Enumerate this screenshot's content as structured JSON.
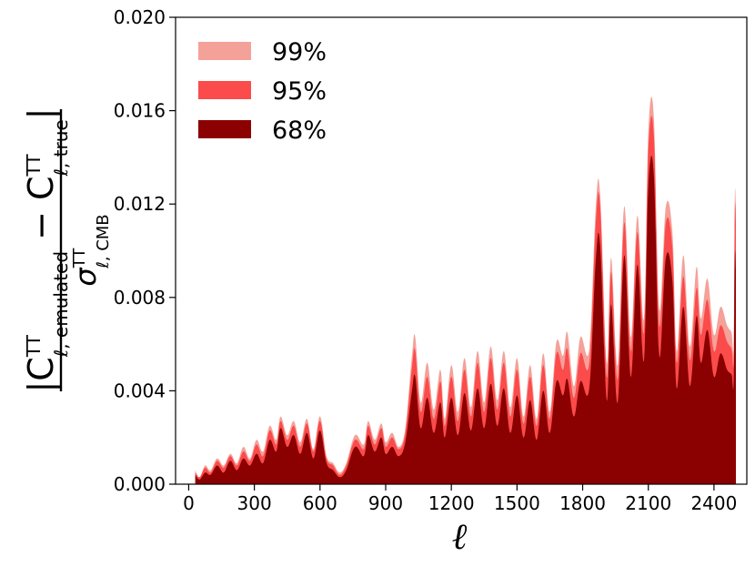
{
  "chart_data": {
    "type": "area",
    "xlabel": "ℓ",
    "ylabel_parts": {
      "numerator_open": "|C",
      "numerator_sup1": "TT",
      "numerator_sub1": "ℓ, emulated",
      "numerator_minus": " − C",
      "numerator_sup2": "TT",
      "numerator_sub2": "ℓ, true",
      "numerator_close": "|",
      "denominator_sigma": "σ",
      "denominator_sup": "TT",
      "denominator_sub": "ℓ, CMB"
    },
    "xlim": [
      -60,
      2550
    ],
    "ylim": [
      0,
      0.02
    ],
    "xticks": [
      0,
      300,
      600,
      900,
      1200,
      1500,
      1800,
      2100,
      2400
    ],
    "xtick_labels": [
      "0",
      "300",
      "600",
      "900",
      "1200",
      "1500",
      "1800",
      "2100",
      "2400"
    ],
    "yticks": [
      0,
      0.004,
      0.008,
      0.012,
      0.016,
      0.02
    ],
    "ytick_labels": [
      "0.000",
      "0.004",
      "0.008",
      "0.012",
      "0.016",
      "0.020"
    ],
    "legend_position": "top-left",
    "series": [
      {
        "name": "99%",
        "color": "#f4a19a",
        "x": [
          30,
          50,
          75,
          100,
          130,
          160,
          190,
          220,
          250,
          280,
          310,
          340,
          370,
          400,
          420,
          450,
          480,
          510,
          540,
          570,
          600,
          630,
          660,
          690,
          720,
          760,
          800,
          820,
          850,
          880,
          900,
          930,
          960,
          990,
          1020,
          1035,
          1060,
          1090,
          1120,
          1150,
          1170,
          1200,
          1230,
          1260,
          1290,
          1320,
          1350,
          1380,
          1410,
          1440,
          1470,
          1500,
          1530,
          1560,
          1590,
          1620,
          1650,
          1680,
          1710,
          1730,
          1760,
          1790,
          1830,
          1860,
          1880,
          1910,
          1930,
          1960,
          1990,
          2020,
          2050,
          2080,
          2100,
          2125,
          2150,
          2180,
          2210,
          2230,
          2260,
          2290,
          2320,
          2340,
          2370,
          2400,
          2430,
          2460,
          2480,
          2490,
          2495,
          2500
        ],
        "y": [
          0.0006,
          0.0003,
          0.0008,
          0.0006,
          0.0011,
          0.0008,
          0.0013,
          0.0009,
          0.0016,
          0.0011,
          0.0019,
          0.0014,
          0.0025,
          0.0019,
          0.0029,
          0.0021,
          0.0027,
          0.0018,
          0.0028,
          0.0015,
          0.0029,
          0.0012,
          0.0009,
          0.0005,
          0.0009,
          0.0021,
          0.0017,
          0.0027,
          0.0019,
          0.0026,
          0.0018,
          0.0022,
          0.0016,
          0.0024,
          0.0055,
          0.0063,
          0.0035,
          0.0052,
          0.0032,
          0.0049,
          0.0028,
          0.0051,
          0.0031,
          0.0054,
          0.0033,
          0.0057,
          0.0035,
          0.0059,
          0.0036,
          0.0057,
          0.0033,
          0.0054,
          0.0029,
          0.0051,
          0.0028,
          0.0056,
          0.0031,
          0.0061,
          0.0055,
          0.0065,
          0.0042,
          0.0063,
          0.0058,
          0.0119,
          0.0124,
          0.0052,
          0.0097,
          0.0051,
          0.0119,
          0.0063,
          0.0115,
          0.0071,
          0.0151,
          0.0158,
          0.0075,
          0.0119,
          0.0108,
          0.0057,
          0.0098,
          0.0059,
          0.0093,
          0.0071,
          0.0088,
          0.0064,
          0.0076,
          0.0068,
          0.0065,
          0.006,
          0.0123,
          0.0118
        ]
      },
      {
        "name": "95%",
        "color": "#fb4b4b",
        "x": [
          30,
          50,
          75,
          100,
          130,
          160,
          190,
          220,
          250,
          280,
          310,
          340,
          370,
          400,
          420,
          450,
          480,
          510,
          540,
          570,
          600,
          630,
          660,
          690,
          720,
          760,
          800,
          820,
          850,
          880,
          900,
          930,
          960,
          990,
          1020,
          1035,
          1060,
          1090,
          1120,
          1150,
          1170,
          1200,
          1230,
          1260,
          1290,
          1320,
          1350,
          1380,
          1410,
          1440,
          1470,
          1500,
          1530,
          1560,
          1590,
          1620,
          1650,
          1680,
          1710,
          1730,
          1760,
          1790,
          1830,
          1860,
          1880,
          1910,
          1930,
          1960,
          1990,
          2020,
          2050,
          2080,
          2100,
          2125,
          2150,
          2180,
          2210,
          2230,
          2260,
          2290,
          2320,
          2340,
          2370,
          2400,
          2430,
          2460,
          2480,
          2490,
          2495,
          2500
        ],
        "y": [
          0.0005,
          0.0003,
          0.0007,
          0.0005,
          0.001,
          0.0007,
          0.0012,
          0.0008,
          0.0014,
          0.001,
          0.0017,
          0.0012,
          0.0023,
          0.0017,
          0.0027,
          0.0019,
          0.0025,
          0.0016,
          0.0026,
          0.0014,
          0.0027,
          0.0011,
          0.0008,
          0.0004,
          0.0008,
          0.0019,
          0.0015,
          0.0025,
          0.0017,
          0.0024,
          0.0016,
          0.002,
          0.0015,
          0.0022,
          0.005,
          0.0057,
          0.0031,
          0.0046,
          0.0028,
          0.0044,
          0.0025,
          0.0046,
          0.0027,
          0.0049,
          0.0029,
          0.0052,
          0.0031,
          0.0054,
          0.0032,
          0.0052,
          0.0029,
          0.0049,
          0.0026,
          0.0046,
          0.0025,
          0.0051,
          0.0028,
          0.0056,
          0.0049,
          0.0058,
          0.0037,
          0.0056,
          0.0052,
          0.0112,
          0.0119,
          0.0046,
          0.0091,
          0.0045,
          0.0112,
          0.0057,
          0.0108,
          0.0065,
          0.0143,
          0.015,
          0.0068,
          0.0112,
          0.0101,
          0.0052,
          0.0089,
          0.0053,
          0.0084,
          0.0064,
          0.0079,
          0.0057,
          0.0068,
          0.0061,
          0.0058,
          0.0054,
          0.0117,
          0.0112
        ]
      },
      {
        "name": "68%",
        "color": "#8b0000",
        "x": [
          30,
          50,
          75,
          100,
          130,
          160,
          190,
          220,
          250,
          280,
          310,
          340,
          370,
          400,
          420,
          450,
          480,
          510,
          540,
          570,
          600,
          630,
          660,
          690,
          720,
          760,
          800,
          820,
          850,
          880,
          900,
          930,
          960,
          990,
          1020,
          1035,
          1060,
          1090,
          1120,
          1150,
          1170,
          1200,
          1230,
          1260,
          1290,
          1320,
          1350,
          1380,
          1410,
          1440,
          1470,
          1500,
          1530,
          1560,
          1590,
          1620,
          1650,
          1680,
          1710,
          1730,
          1760,
          1790,
          1830,
          1860,
          1880,
          1910,
          1930,
          1960,
          1990,
          2020,
          2050,
          2080,
          2100,
          2125,
          2150,
          2180,
          2210,
          2230,
          2260,
          2290,
          2320,
          2340,
          2370,
          2400,
          2430,
          2460,
          2480,
          2490,
          2495,
          2500
        ],
        "y": [
          0.0004,
          0.0002,
          0.0005,
          0.0004,
          0.0008,
          0.0005,
          0.001,
          0.0006,
          0.0011,
          0.0008,
          0.0013,
          0.0009,
          0.0019,
          0.0014,
          0.0024,
          0.0016,
          0.0021,
          0.0013,
          0.0022,
          0.0011,
          0.0023,
          0.0009,
          0.0006,
          0.0003,
          0.0006,
          0.0016,
          0.0012,
          0.0021,
          0.0014,
          0.002,
          0.0013,
          0.0016,
          0.0012,
          0.0018,
          0.004,
          0.0046,
          0.0024,
          0.0037,
          0.0022,
          0.0035,
          0.002,
          0.0037,
          0.0021,
          0.0039,
          0.0023,
          0.0041,
          0.0024,
          0.0043,
          0.0025,
          0.0041,
          0.0022,
          0.0038,
          0.002,
          0.0036,
          0.0019,
          0.004,
          0.0022,
          0.0044,
          0.0038,
          0.0045,
          0.0029,
          0.0044,
          0.0041,
          0.0096,
          0.0102,
          0.0036,
          0.0077,
          0.0035,
          0.0098,
          0.0046,
          0.0094,
          0.0053,
          0.0127,
          0.0133,
          0.0055,
          0.0097,
          0.0087,
          0.0041,
          0.0076,
          0.0042,
          0.0072,
          0.0052,
          0.0066,
          0.0046,
          0.0056,
          0.0049,
          0.0047,
          0.0044,
          0.0097,
          0.0092
        ]
      }
    ]
  }
}
